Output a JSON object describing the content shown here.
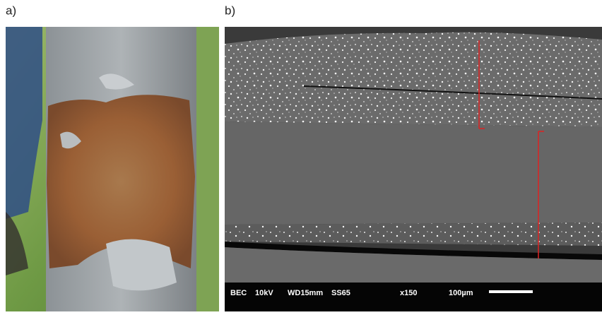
{
  "panels": [
    {
      "label": "a)"
    },
    {
      "label": "b)",
      "info_bar": [
        "BEC",
        "10kV",
        "WD15mm",
        "SS65",
        "x150",
        "100µm"
      ]
    }
  ]
}
